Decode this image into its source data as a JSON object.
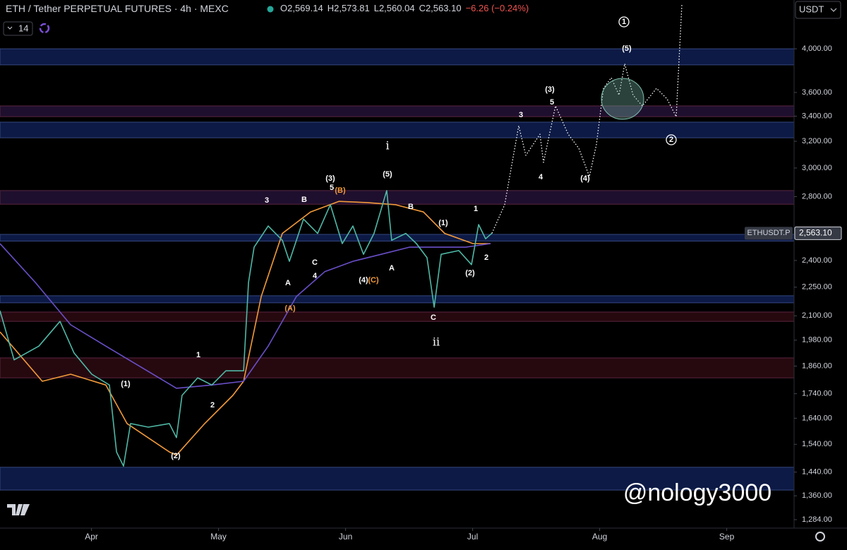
{
  "header": {
    "symbol": "ETH / Tether PERPETUAL FUTURES · 4h · MEXC",
    "ohlc": [
      "O2,569.14",
      "H2,573.81",
      "L2,560.04",
      "C2,563.10",
      "−6.26 (−0.24%)"
    ],
    "indicator_count": 14,
    "currency": "USDT"
  },
  "watermark": "@nology3000",
  "chart_data": {
    "type": "line",
    "log_scale": true,
    "grid": false,
    "xlim": [
      3.28,
      9.53
    ],
    "xticks": [
      {
        "value": 4,
        "label": "Apr"
      },
      {
        "value": 5,
        "label": "May"
      },
      {
        "value": 6,
        "label": "Jun"
      },
      {
        "value": 7,
        "label": "Jul"
      },
      {
        "value": 8,
        "label": "Aug"
      },
      {
        "value": 9,
        "label": "Sep"
      }
    ],
    "ylim": [
      1258,
      4500
    ],
    "yticks": [
      {
        "value": 4000,
        "label": "4,000.00"
      },
      {
        "value": 3600,
        "label": "3,600.00"
      },
      {
        "value": 3400,
        "label": "3,400.00"
      },
      {
        "value": 3200,
        "label": "3,200.00"
      },
      {
        "value": 3000,
        "label": "3,000.00"
      },
      {
        "value": 2800,
        "label": "2,800.00"
      },
      {
        "value": 2400,
        "label": "2,400.00"
      },
      {
        "value": 2250,
        "label": "2,250.00"
      },
      {
        "value": 2100,
        "label": "2,100.00"
      },
      {
        "value": 1980,
        "label": "1,980.00"
      },
      {
        "value": 1860,
        "label": "1,860.00"
      },
      {
        "value": 1740,
        "label": "1,740.00"
      },
      {
        "value": 1640,
        "label": "1,640.00"
      },
      {
        "value": 1540,
        "label": "1,540.00"
      },
      {
        "value": 1440,
        "label": "1,440.00"
      },
      {
        "value": 1360,
        "label": "1,360.00"
      },
      {
        "value": 1284,
        "label": "1,284.00"
      }
    ],
    "series": [
      {
        "color": "#f29a3a",
        "style": "solid",
        "x": [
          3.28,
          3.613,
          3.836,
          4.113,
          4.28,
          4.613,
          4.669,
          4.891,
          5.113,
          5.197,
          5.336,
          5.502,
          5.724,
          5.947,
          6.169,
          6.391,
          6.613,
          6.78,
          7.002,
          7.141
        ],
        "values": [
          2020,
          1793,
          1824,
          1777,
          1619,
          1512,
          1500,
          1619,
          1733,
          1793,
          2200,
          2562,
          2698,
          2768,
          2760,
          2746,
          2698,
          2562,
          2500,
          2500
        ]
      },
      {
        "color": "#6a4fc8",
        "style": "solid",
        "x": [
          3.28,
          3.558,
          3.836,
          4.113,
          4.391,
          4.669,
          4.947,
          5.197,
          5.391,
          5.613,
          5.836,
          6.058,
          6.28,
          6.502,
          6.724,
          6.947,
          7.141
        ],
        "values": [
          2500,
          2276,
          2055,
          1952,
          1855,
          1763,
          1777,
          1793,
          1952,
          2200,
          2336,
          2395,
          2436,
          2478,
          2478,
          2478,
          2500
        ]
      },
      {
        "color": "#4fb8a6",
        "style": "solid",
        "x": [
          3.28,
          3.391,
          3.586,
          3.752,
          3.863,
          4.002,
          4.141,
          4.197,
          4.252,
          4.308,
          4.447,
          4.613,
          4.669,
          4.713,
          4.836,
          4.947,
          5.058,
          5.197,
          5.236,
          5.28,
          5.391,
          5.502,
          5.558,
          5.669,
          5.78,
          5.88,
          5.974,
          6.058,
          6.141,
          6.224,
          6.324,
          6.363,
          6.474,
          6.558,
          6.641,
          6.697,
          6.752,
          6.891,
          6.991,
          7.047,
          7.102,
          7.152
        ],
        "values": [
          2126,
          1888,
          1952,
          2072,
          1920,
          1824,
          1777,
          1512,
          1461,
          1619,
          1605,
          1619,
          1565,
          1733,
          1808,
          1777,
          1839,
          1839,
          2276,
          2478,
          2608,
          2520,
          2395,
          2652,
          2562,
          2746,
          2500,
          2608,
          2436,
          2562,
          2841,
          2520,
          2562,
          2500,
          2416,
          2144,
          2436,
          2458,
          2376,
          2617,
          2529,
          2563
        ]
      },
      {
        "color": "#ffffff",
        "style": "dotted",
        "x": [
          7.152,
          7.252,
          7.363,
          7.419,
          7.53,
          7.558,
          7.652,
          7.752,
          7.836,
          7.919,
          7.974,
          8.03,
          8.091,
          8.152,
          8.197,
          8.263,
          8.336,
          8.447,
          8.53,
          8.602,
          8.647
        ],
        "values": [
          2563,
          2746,
          3322,
          3093,
          3255,
          3041,
          3485,
          3255,
          3146,
          2939,
          3173,
          3636,
          3730,
          3577,
          3858,
          3577,
          3485,
          3636,
          3545,
          3396,
          4461
        ]
      }
    ],
    "zones": [
      {
        "low": 3848,
        "high": 4000,
        "color": "#0d1a45"
      },
      {
        "low": 3396,
        "high": 3485,
        "color": "#1f0f2e"
      },
      {
        "low": 3227,
        "high": 3351,
        "color": "#0d1a45"
      },
      {
        "low": 2749,
        "high": 2841,
        "color": "#1f0f2e"
      },
      {
        "low": 2515,
        "high": 2556,
        "color": "#0d1a45"
      },
      {
        "low": 2167,
        "high": 2204,
        "color": "#0d1a45"
      },
      {
        "low": 2072,
        "high": 2119,
        "color": "#26090f"
      },
      {
        "low": 1808,
        "high": 1897,
        "color": "#26090f"
      },
      {
        "low": 1379,
        "high": 1457,
        "color": "#0d1a45"
      }
    ],
    "annotations": [
      {
        "text": "(1)",
        "color": "#ffffff"
      },
      {
        "text": "(2)",
        "color": "#ffffff"
      },
      {
        "text": "1",
        "color": "#ffffff"
      },
      {
        "text": "2",
        "color": "#ffffff"
      },
      {
        "text": "3",
        "color": "#ffffff"
      },
      {
        "text": "A",
        "color": "#ffffff"
      },
      {
        "text": "C",
        "color": "#ffffff"
      },
      {
        "text": "4",
        "color": "#ffffff"
      },
      {
        "text": "B",
        "color": "#ffffff"
      },
      {
        "text": "(3)",
        "color": "#ffffff"
      },
      {
        "text": "5",
        "color": "#ffffff"
      },
      {
        "text": "(B)",
        "color": "#f29a3a"
      },
      {
        "text": "(A)",
        "color": "#f29a3a"
      },
      {
        "text": "(4)",
        "color": "#ffffff"
      },
      {
        "text": "(C)",
        "color": "#f29a3a"
      },
      {
        "text": "(5)",
        "color": "#ffffff"
      },
      {
        "text": "i",
        "color": "#ffffff"
      },
      {
        "text": "A",
        "color": "#ffffff"
      },
      {
        "text": "B",
        "color": "#ffffff"
      },
      {
        "text": "(1)",
        "color": "#ffffff"
      },
      {
        "text": "ii",
        "color": "#ffffff"
      },
      {
        "text": "C",
        "color": "#ffffff"
      },
      {
        "text": "(2)",
        "color": "#ffffff"
      },
      {
        "text": "1",
        "color": "#ffffff"
      },
      {
        "text": "2",
        "color": "#ffffff"
      },
      {
        "text": "3",
        "color": "#ffffff"
      },
      {
        "text": "4",
        "color": "#ffffff"
      },
      {
        "text": "(3)",
        "color": "#ffffff"
      },
      {
        "text": "5",
        "color": "#ffffff"
      },
      {
        "text": "(4)",
        "color": "#ffffff"
      },
      {
        "text": "(5)",
        "color": "#ffffff"
      },
      {
        "text": "1",
        "color": "#ffffff",
        "circled": true
      },
      {
        "text": "2",
        "color": "#ffffff",
        "circled": true
      }
    ],
    "price_tag": {
      "symbol": "ETHUSDT.P",
      "value": 2563.1,
      "label": "2,563.10"
    }
  }
}
